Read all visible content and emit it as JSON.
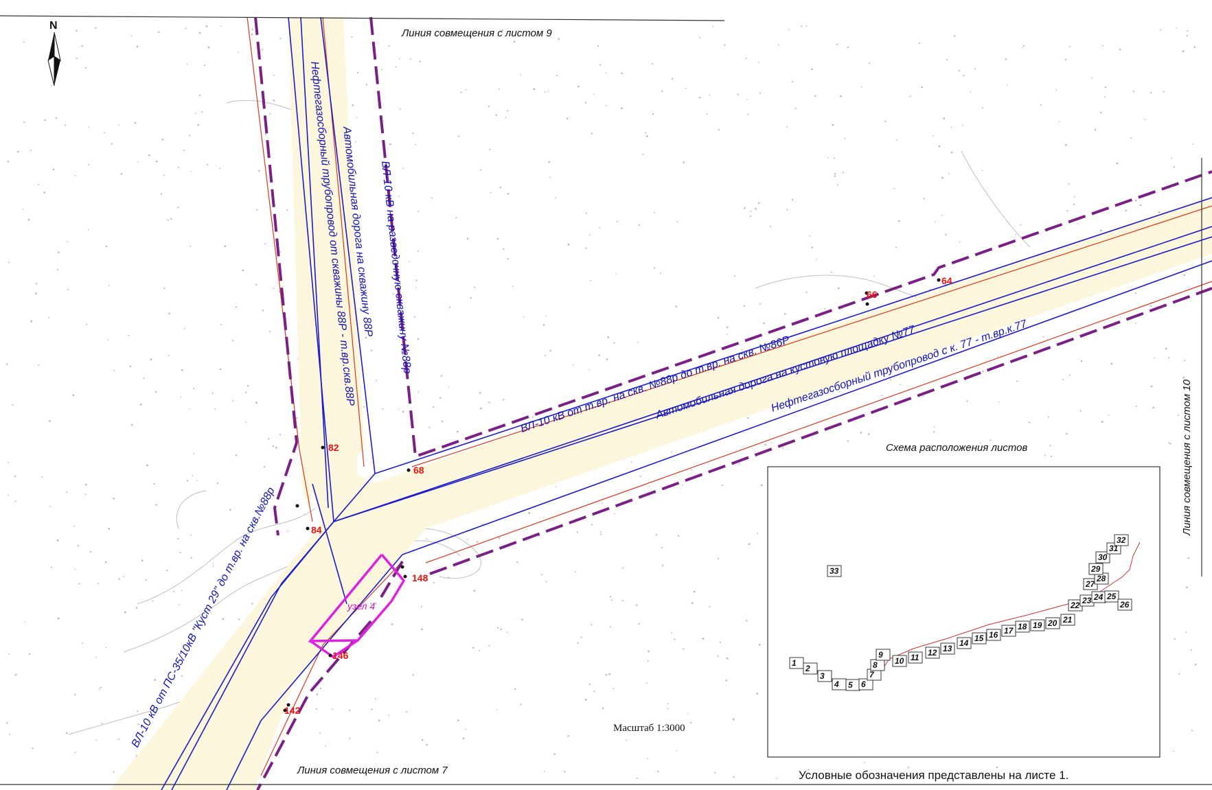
{
  "map": {
    "north_label": "N",
    "match_line_top": "Линия совмещения с листом 9",
    "match_line_bottom": "Линия совмещения с листом 7",
    "match_line_right": "Линия совмещения с листом 10",
    "scale": "Масштаб 1:3000",
    "legend_note": "Условные обозначения представлены на листе 1.",
    "node_label": "узел 4",
    "corridor_labels": {
      "vertical_pipeline": "Нефтегазосборный трубопровод от скважины 88Р - т.вр.скв.88Р",
      "vertical_road": "Автомобильная дорога на скважину 88Р",
      "vertical_power": "ВЛ-10 кВ на разведочную скважину №88р",
      "diag_power": "ВЛ-10 кВ от т.вр. на скв. №88р до т.вр. на скв. №86Р",
      "diag_road": "Автомобильная дорога на кустовую площадку №77",
      "diag_pipeline": "Нефтегазосборный трубопровод с к. 77 - т.вр.к.77",
      "sw_power": "ВЛ-10 кВ от ПС-35/10кВ \"Куст 29\" до т.вр. на скв.№88р"
    },
    "point_numbers": [
      "82",
      "84",
      "68",
      "66",
      "64",
      "148",
      "146",
      "142"
    ]
  },
  "sheet_scheme": {
    "title": "Схема расположения листов",
    "sheets": [
      "1",
      "2",
      "3",
      "4",
      "5",
      "6",
      "7",
      "8",
      "9",
      "10",
      "11",
      "12",
      "13",
      "14",
      "15",
      "16",
      "17",
      "18",
      "19",
      "20",
      "21",
      "22",
      "23",
      "24",
      "25",
      "26",
      "27",
      "28",
      "29",
      "30",
      "31",
      "32",
      "33"
    ]
  },
  "colors": {
    "corridor_fill": "#fbf6dc",
    "boundary": "#7a1f86",
    "road_line": "#1a1ad0",
    "red_line": "#d9361a",
    "node": "#e020e0",
    "points": "#e01010"
  }
}
